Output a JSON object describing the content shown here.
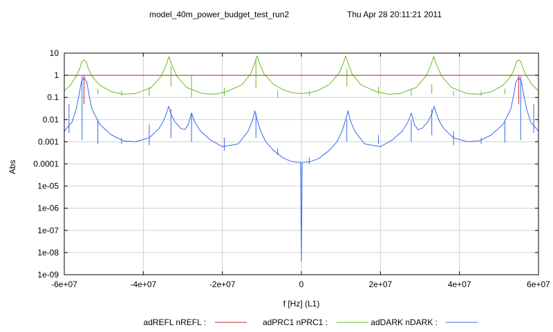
{
  "chart_data": {
    "type": "line",
    "title": "model_40m_power_budget_test_run2",
    "timestamp": "Thu Apr 28 20:11:21 2011",
    "xlabel": "f [Hz] (L1)",
    "ylabel": "Abs",
    "x_scale": "linear",
    "y_scale": "log",
    "xlim": [
      -60000000,
      60000000
    ],
    "ylim": [
      1e-09,
      10
    ],
    "grid": true,
    "legend_position": "bottom",
    "x_ticks": [
      -60000000,
      -40000000,
      -20000000,
      0,
      20000000,
      40000000,
      60000000
    ],
    "x_tick_labels": [
      "-6e+07",
      "-4e+07",
      "-2e+07",
      "0",
      "2e+07",
      "4e+07",
      "6e+07"
    ],
    "y_ticks": [
      10,
      1,
      0.1,
      0.01,
      0.001,
      0.0001,
      1e-05,
      1e-06,
      1e-07,
      1e-08,
      1e-09
    ],
    "y_tick_labels": [
      "10",
      "1",
      "0.1",
      "0.01",
      "0.001",
      "0.0001",
      "1e-05",
      "1e-06",
      "1e-07",
      "1e-08",
      "1e-09"
    ],
    "series": [
      {
        "name": "adREFL nREFL :",
        "color": "#cc2222",
        "x": [
          -60000000,
          -55200000,
          -55000000,
          -54800000,
          54800000,
          55000000,
          55200000,
          60000000
        ],
        "y": [
          1,
          1,
          1,
          1,
          1,
          1,
          1,
          1
        ],
        "spikes": [
          {
            "x": -55000000,
            "y1": 0.05,
            "y2": 1
          },
          {
            "x": 55000000,
            "y1": 0.05,
            "y2": 1
          }
        ]
      },
      {
        "name": "adPRC1 nPRC1 :",
        "color": "#66bb22",
        "x": [
          -60000000,
          -58500000,
          -57000000,
          -56000000,
          -55600000,
          -55000000,
          -54400000,
          -54000000,
          -53000000,
          -51000000,
          -48000000,
          -45000000,
          -42000000,
          -38000000,
          -35500000,
          -34200000,
          -33500000,
          -32800000,
          -31500000,
          -29000000,
          -25000000,
          -22000000,
          -19000000,
          -15000000,
          -12800000,
          -11800000,
          -11200000,
          -10600000,
          -9500000,
          -7000000,
          -4000000,
          -2000000,
          0,
          2000000,
          4000000,
          7000000,
          9500000,
          10600000,
          11200000,
          11800000,
          12800000,
          15000000,
          19000000,
          22000000,
          25000000,
          29000000,
          31500000,
          32800000,
          33500000,
          34200000,
          35500000,
          38000000,
          42000000,
          45000000,
          48000000,
          51000000,
          53000000,
          54000000,
          54400000,
          55000000,
          55600000,
          56000000,
          57000000,
          58500000,
          60000000
        ],
        "y": [
          0.2,
          0.35,
          0.9,
          2.2,
          4.0,
          5.0,
          4.0,
          2.2,
          0.9,
          0.35,
          0.18,
          0.14,
          0.15,
          0.28,
          0.9,
          3.0,
          7.0,
          3.0,
          0.9,
          0.28,
          0.15,
          0.14,
          0.18,
          0.38,
          1.2,
          3.5,
          7.5,
          3.5,
          1.2,
          0.38,
          0.2,
          0.16,
          0.15,
          0.16,
          0.2,
          0.38,
          1.2,
          3.5,
          7.5,
          3.5,
          1.2,
          0.38,
          0.18,
          0.14,
          0.15,
          0.28,
          0.9,
          3.0,
          7.0,
          3.0,
          0.9,
          0.28,
          0.15,
          0.14,
          0.18,
          0.35,
          0.9,
          2.2,
          4.0,
          5.0,
          4.0,
          2.2,
          0.9,
          0.35,
          0.2
        ],
        "spikes": [
          {
            "x": -51500000,
            "y1": 0.14,
            "y2": 0.25
          },
          {
            "x": -45500000,
            "y1": 0.12,
            "y2": 0.2
          },
          {
            "x": -38500000,
            "y1": 0.12,
            "y2": 0.3
          },
          {
            "x": -33000000,
            "y1": 0.3,
            "y2": 2.5
          },
          {
            "x": -27800000,
            "y1": 0.1,
            "y2": 1.0
          },
          {
            "x": -19500000,
            "y1": 0.12,
            "y2": 0.28
          },
          {
            "x": -11500000,
            "y1": 0.25,
            "y2": 6.0
          },
          {
            "x": -6000000,
            "y1": 0.1,
            "y2": 0.2
          },
          {
            "x": 2000000,
            "y1": 0.12,
            "y2": 0.2
          },
          {
            "x": 11500000,
            "y1": 0.3,
            "y2": 2.0
          },
          {
            "x": 19500000,
            "y1": 0.14,
            "y2": 0.3
          },
          {
            "x": 27800000,
            "y1": 0.12,
            "y2": 0.25
          },
          {
            "x": 33000000,
            "y1": 0.15,
            "y2": 0.4
          },
          {
            "x": 38500000,
            "y1": 0.12,
            "y2": 0.2
          },
          {
            "x": 45500000,
            "y1": 0.12,
            "y2": 0.2
          },
          {
            "x": 51500000,
            "y1": 0.14,
            "y2": 0.25
          }
        ]
      },
      {
        "name": "adDARK nDARK :",
        "color": "#3366ee",
        "x": [
          -60000000,
          -58000000,
          -57000000,
          -56200000,
          -55700000,
          -55000000,
          -54300000,
          -53800000,
          -53000000,
          -51000000,
          -48000000,
          -45000000,
          -42000000,
          -38500000,
          -36000000,
          -35000000,
          -34200000,
          -33600000,
          -33000000,
          -32000000,
          -30500000,
          -29500000,
          -28600000,
          -27800000,
          -27000000,
          -25500000,
          -23000000,
          -20000000,
          -16000000,
          -13500000,
          -12300000,
          -11800000,
          -11200000,
          -10300000,
          -9000000,
          -7000000,
          -4500000,
          -2500000,
          -1000000,
          -200000,
          0,
          200000,
          1000000,
          2500000,
          4500000,
          7000000,
          9000000,
          10300000,
          11200000,
          11800000,
          12300000,
          13500000,
          16000000,
          20000000,
          23000000,
          25500000,
          27000000,
          27800000,
          28600000,
          29500000,
          30500000,
          32000000,
          33000000,
          33600000,
          34200000,
          35000000,
          36000000,
          38500000,
          42000000,
          45000000,
          48000000,
          51000000,
          53000000,
          53800000,
          54300000,
          55000000,
          55700000,
          56200000,
          57000000,
          58000000,
          60000000
        ],
        "y": [
          0.003,
          0.008,
          0.03,
          0.15,
          0.5,
          0.8,
          0.5,
          0.15,
          0.03,
          0.006,
          0.002,
          0.0011,
          0.001,
          0.0015,
          0.004,
          0.008,
          0.018,
          0.04,
          0.018,
          0.008,
          0.004,
          0.0035,
          0.006,
          0.02,
          0.008,
          0.003,
          0.0012,
          0.0006,
          0.0008,
          0.003,
          0.01,
          0.025,
          0.01,
          0.003,
          0.001,
          0.0004,
          0.00018,
          0.00013,
          0.00012,
          0.00012,
          4e-09,
          0.00012,
          0.00012,
          0.00013,
          0.00018,
          0.0004,
          0.001,
          0.003,
          0.01,
          0.025,
          0.01,
          0.003,
          0.0008,
          0.0006,
          0.0012,
          0.003,
          0.008,
          0.02,
          0.006,
          0.0035,
          0.004,
          0.008,
          0.018,
          0.04,
          0.018,
          0.008,
          0.004,
          0.0015,
          0.001,
          0.0011,
          0.002,
          0.006,
          0.03,
          0.15,
          0.5,
          0.8,
          0.5,
          0.15,
          0.03,
          0.008,
          0.003
        ],
        "spikes": [
          {
            "x": -58800000,
            "y1": 0.0025,
            "y2": 0.05
          },
          {
            "x": -55500000,
            "y1": 0.0012,
            "y2": 0.9
          },
          {
            "x": -51500000,
            "y1": 0.0008,
            "y2": 0.01
          },
          {
            "x": -45500000,
            "y1": 0.0008,
            "y2": 0.0015
          },
          {
            "x": -38500000,
            "y1": 0.0007,
            "y2": 0.006
          },
          {
            "x": -33000000,
            "y1": 0.0015,
            "y2": 0.03
          },
          {
            "x": -27800000,
            "y1": 0.001,
            "y2": 0.02
          },
          {
            "x": -19500000,
            "y1": 0.0004,
            "y2": 0.0015
          },
          {
            "x": -11500000,
            "y1": 0.0015,
            "y2": 0.02
          },
          {
            "x": -6000000,
            "y1": 0.00025,
            "y2": 0.0005
          },
          {
            "x": 2000000,
            "y1": 0.0001,
            "y2": 0.0002
          },
          {
            "x": 11500000,
            "y1": 0.001,
            "y2": 0.01
          },
          {
            "x": 19500000,
            "y1": 0.0008,
            "y2": 0.002
          },
          {
            "x": 27800000,
            "y1": 0.001,
            "y2": 0.01
          },
          {
            "x": 33000000,
            "y1": 0.002,
            "y2": 0.03
          },
          {
            "x": 38500000,
            "y1": 0.0007,
            "y2": 0.003
          },
          {
            "x": 45500000,
            "y1": 0.0008,
            "y2": 0.0015
          },
          {
            "x": 51500000,
            "y1": 0.0009,
            "y2": 0.008
          },
          {
            "x": 55500000,
            "y1": 0.0012,
            "y2": 0.9
          },
          {
            "x": 58800000,
            "y1": 0.0025,
            "y2": 0.05
          }
        ]
      }
    ]
  }
}
